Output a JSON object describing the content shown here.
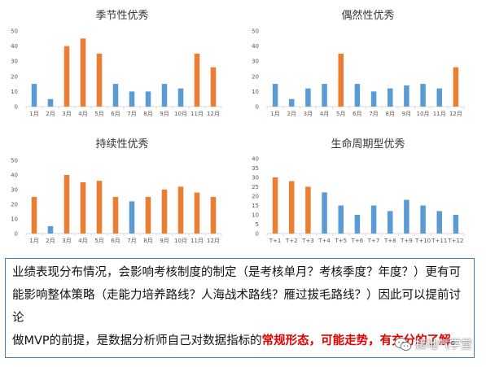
{
  "chart_data": [
    {
      "type": "bar",
      "title": "季节性优秀",
      "categories": [
        "1月",
        "2月",
        "3月",
        "4月",
        "5月",
        "6月",
        "7月",
        "8月",
        "9月",
        "10月",
        "11月",
        "12月"
      ],
      "values": [
        15,
        5,
        40,
        45,
        35,
        15,
        10,
        10,
        15,
        12,
        35,
        26
      ],
      "highlight": [
        false,
        false,
        true,
        true,
        true,
        false,
        false,
        false,
        false,
        false,
        true,
        true
      ],
      "ylim": [
        0,
        50
      ],
      "yticks": [
        0,
        10,
        20,
        30,
        40,
        50
      ]
    },
    {
      "type": "bar",
      "title": "偶然性优秀",
      "categories": [
        "1月",
        "2月",
        "3月",
        "4月",
        "5月",
        "6月",
        "7月",
        "8月",
        "9月",
        "10月",
        "11月",
        "12月"
      ],
      "values": [
        15,
        5,
        12,
        15,
        35,
        15,
        10,
        12,
        14,
        15,
        12,
        26
      ],
      "highlight": [
        false,
        false,
        false,
        false,
        true,
        false,
        false,
        false,
        false,
        false,
        false,
        true
      ],
      "ylim": [
        0,
        50
      ],
      "yticks": [
        0,
        10,
        20,
        30,
        40,
        50
      ]
    },
    {
      "type": "bar",
      "title": "持续性优秀",
      "categories": [
        "1月",
        "2月",
        "3月",
        "4月",
        "5月",
        "6月",
        "7月",
        "8月",
        "9月",
        "10月",
        "11月",
        "12月"
      ],
      "values": [
        25,
        5,
        40,
        35,
        36,
        25,
        22,
        25,
        30,
        32,
        28,
        25
      ],
      "highlight": [
        true,
        false,
        true,
        true,
        true,
        true,
        false,
        true,
        true,
        true,
        true,
        true
      ],
      "ylim": [
        0,
        50
      ],
      "yticks": [
        0,
        10,
        20,
        30,
        40,
        50
      ]
    },
    {
      "type": "bar",
      "title": "生命周期型优秀",
      "categories": [
        "T+1",
        "T+2",
        "T+3",
        "T+4",
        "T+5",
        "T+6",
        "T+7",
        "T+8",
        "T+9",
        "T+10",
        "T+11",
        "T+12"
      ],
      "values": [
        30,
        28,
        25,
        22,
        15,
        10,
        15,
        12,
        18,
        15,
        12,
        10
      ],
      "highlight": [
        true,
        true,
        true,
        false,
        false,
        false,
        false,
        false,
        false,
        false,
        false,
        false
      ],
      "ylim": [
        0,
        40
      ],
      "yticks": [
        0,
        5,
        10,
        15,
        20,
        25,
        30,
        35,
        40
      ]
    }
  ],
  "colors": {
    "blue": "#5b9bd5",
    "orange": "#ed7d31",
    "border": "#3e7bbf",
    "emphasis": "#e00000"
  },
  "text": {
    "line1": "业绩表现分布情况，会影响考核制度的制定（是考核单月？考核季度？年度？）更有可能影响整体策略（走能力培养路线？人海战术路线？雁过拔毛路线？）因此可以提前讨论",
    "line2_prefix": "做MVP的前提，是数据分析师自己对数据指标的",
    "line2_emphasis": "常规形态，可能走势，有充分的了解",
    "line2_suffix": "。"
  },
  "watermark": {
    "icon": "wechat-icon",
    "label": "接地气学堂"
  }
}
